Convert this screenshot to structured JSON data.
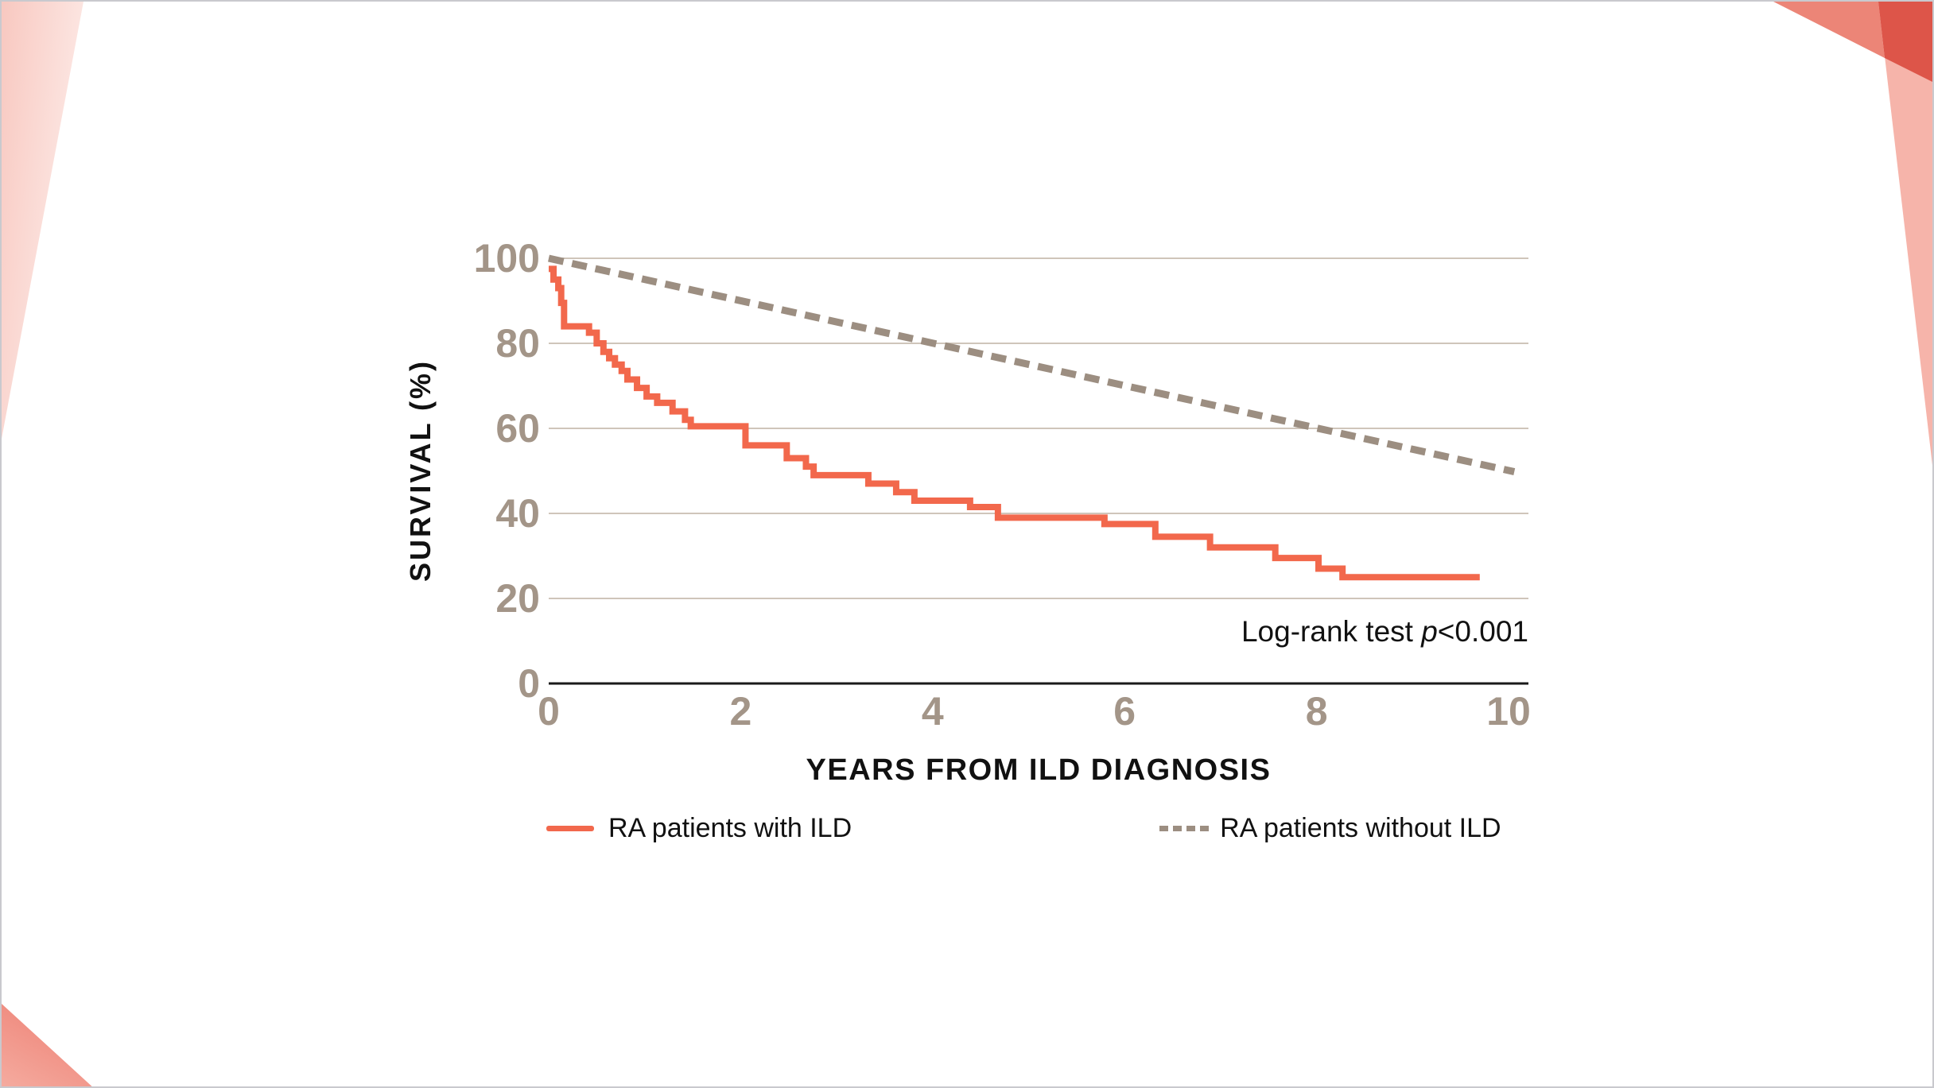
{
  "chart_data": {
    "type": "line",
    "subtype": "kaplan-meier-survival",
    "title": "",
    "xlabel": "YEARS FROM ILD DIAGNOSIS",
    "ylabel": "SURVIVAL (%)",
    "xlim": [
      0,
      10
    ],
    "ylim": [
      0,
      100
    ],
    "xticks": [
      0,
      2,
      4,
      6,
      8,
      10
    ],
    "yticks": [
      0,
      20,
      40,
      60,
      80,
      100
    ],
    "grid": "horizontal",
    "legend_position": "bottom",
    "series": [
      {
        "name": "RA patients with ILD",
        "style": "step-solid",
        "color": "#F2684C",
        "points": [
          [
            0,
            97.5
          ],
          [
            0.05,
            95
          ],
          [
            0.1,
            93
          ],
          [
            0.13,
            89.5
          ],
          [
            0.16,
            84
          ],
          [
            0.42,
            82.5
          ],
          [
            0.5,
            80
          ],
          [
            0.57,
            78
          ],
          [
            0.63,
            76.5
          ],
          [
            0.69,
            75
          ],
          [
            0.76,
            73.5
          ],
          [
            0.82,
            71.5
          ],
          [
            0.92,
            69.5
          ],
          [
            1.02,
            67.5
          ],
          [
            1.13,
            66
          ],
          [
            1.29,
            64
          ],
          [
            1.42,
            62
          ],
          [
            1.48,
            60.5
          ],
          [
            2.05,
            56
          ],
          [
            2.48,
            53
          ],
          [
            2.68,
            51
          ],
          [
            2.76,
            49
          ],
          [
            3.33,
            47
          ],
          [
            3.62,
            45
          ],
          [
            3.81,
            43
          ],
          [
            4.39,
            41.5
          ],
          [
            4.68,
            39
          ],
          [
            5.79,
            37.5
          ],
          [
            6.32,
            34.5
          ],
          [
            6.89,
            32
          ],
          [
            7.57,
            29.5
          ],
          [
            8.02,
            27
          ],
          [
            8.27,
            25
          ],
          [
            9.7,
            25
          ]
        ]
      },
      {
        "name": "RA patients without ILD",
        "style": "dashed-straight",
        "color": "#9C8E81",
        "points": [
          [
            0,
            100
          ],
          [
            10.06,
            49.8
          ]
        ]
      }
    ]
  },
  "annotation": {
    "prefix": "Log-rank test ",
    "italic": "p",
    "suffix": "<0.001"
  },
  "legend": {
    "item1_label": "RA patients with ILD",
    "item2_label": "RA patients without ILD"
  },
  "colors": {
    "solid_series": "#F2684C",
    "dashed_series": "#9C8E81",
    "tick_label": "#A39588",
    "gridline": "#CFC5BA",
    "axis_line": "#1A1A1A"
  },
  "decor": {
    "tl_from": "#f8c8c0",
    "tl_to": "#fdedea",
    "bl_from": "#ee8377",
    "bl_to": "#f5aca0",
    "tr_band": "#f6b4aa",
    "tr_tri": "#ec8577",
    "tr_overlap": "#dd5549"
  }
}
